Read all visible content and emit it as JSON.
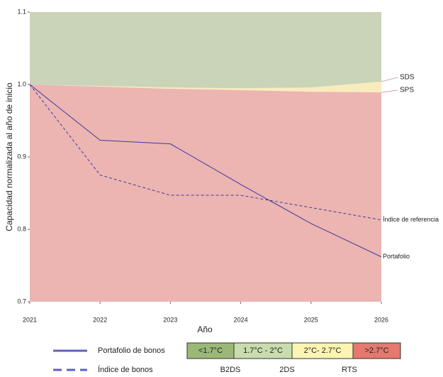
{
  "chart_data": {
    "type": "line",
    "x": [
      2021,
      2022,
      2023,
      2024,
      2025,
      2026
    ],
    "xlim": [
      2021,
      2026
    ],
    "xticks": [
      2021,
      2022,
      2023,
      2024,
      2025,
      2026
    ],
    "ylim": [
      0.7,
      1.1
    ],
    "yticks": [
      0.7,
      0.8,
      0.9,
      {
        "value": 1,
        "label": "1.0"
      },
      1.1
    ],
    "xlabel": "Año",
    "ylabel": "Capacidad normalizada al año de inicio",
    "scenario_series": [
      {
        "name": "SDS",
        "fill": "#c9d4b9",
        "values": [
          1.0,
          0.998,
          0.996,
          0.995,
          0.996,
          1.004
        ]
      },
      {
        "name": "SPS",
        "fill": "#f8ecbf",
        "values": [
          1.0,
          0.997,
          0.994,
          0.992,
          0.99,
          0.989
        ]
      }
    ],
    "below_fill": "#ecb5b1",
    "series": [
      {
        "name": "Portafolio",
        "legend_name": "Portafolio de bonos",
        "color": "#3a3aa8",
        "dash": false,
        "values": [
          1.0,
          0.923,
          0.918,
          0.862,
          0.808,
          0.762
        ]
      },
      {
        "name": "Índice de referencia",
        "legend_name": "Índice de bonos",
        "color": "#3a3aa8",
        "dash": true,
        "values": [
          1.0,
          0.875,
          0.847,
          0.847,
          0.83,
          0.813
        ]
      }
    ],
    "temperature_legend": [
      {
        "label": "<1.7°C",
        "color": "#9cb878"
      },
      {
        "label": "1.7°C - 2°C",
        "color": "#c8dcae"
      },
      {
        "label": "2°C- 2.7°C",
        "color": "#fcf4b2"
      },
      {
        "label": ">2.7°C",
        "color": "#e5786f"
      }
    ],
    "scenarios": [
      "B2DS",
      "2DS",
      "RTS"
    ]
  }
}
